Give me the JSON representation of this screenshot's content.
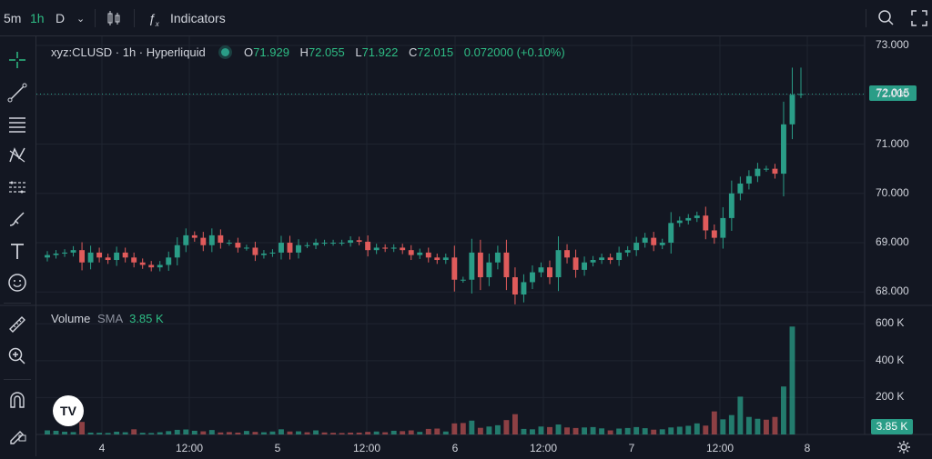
{
  "topbar": {
    "timeframes": [
      "5m",
      "1h",
      "D"
    ],
    "active_timeframe": "1h",
    "indicators_label": "Indicators"
  },
  "legend": {
    "symbol": "xyz:CLUSD · 1h · Hyperliquid",
    "o_label": "O",
    "o": "71.929",
    "h_label": "H",
    "h": "72.055",
    "l_label": "L",
    "l": "71.922",
    "c_label": "C",
    "c": "72.015",
    "change": "0.072000 (+0.10%)"
  },
  "volume_legend": {
    "label": "Volume",
    "sma_label": "SMA",
    "sma_value": "3.85 K"
  },
  "last_price_tag": "72.015",
  "volume_tag": "3.85 K",
  "colors": {
    "up": "#2a9d87",
    "down": "#e05b5b",
    "bg": "#131722",
    "grid": "#1f2430",
    "text": "#d1d4dc"
  },
  "chart_data": [
    {
      "type": "candlestick",
      "ylim": [
        67.6,
        73.0
      ],
      "yticks": [
        "68.000",
        "69.000",
        "70.000",
        "71.000",
        "72.000",
        "73.000"
      ],
      "xticks": [
        "4",
        "12:00",
        "5",
        "12:00",
        "6",
        "12:00",
        "7",
        "12:00",
        "8"
      ],
      "close": [
        68.75,
        68.78,
        68.8,
        68.85,
        68.6,
        68.8,
        68.7,
        68.65,
        68.8,
        68.7,
        68.6,
        68.55,
        68.5,
        68.55,
        68.7,
        68.95,
        69.15,
        69.1,
        68.95,
        69.15,
        69.0,
        69.0,
        68.9,
        68.9,
        68.75,
        68.78,
        68.8,
        69.0,
        68.8,
        68.95,
        68.95,
        69.0,
        69.0,
        69.0,
        69.0,
        69.05,
        69.02,
        68.85,
        68.9,
        68.88,
        68.9,
        68.85,
        68.75,
        68.8,
        68.7,
        68.65,
        68.7,
        68.25,
        68.25,
        68.8,
        68.3,
        68.6,
        68.8,
        68.3,
        67.95,
        68.2,
        68.4,
        68.5,
        68.3,
        68.85,
        68.7,
        68.45,
        68.6,
        68.65,
        68.7,
        68.65,
        68.8,
        68.85,
        69.0,
        69.1,
        68.95,
        69.0,
        69.4,
        69.45,
        69.5,
        69.55,
        69.25,
        69.1,
        69.5,
        70.0,
        70.2,
        70.35,
        70.5,
        70.5,
        70.4,
        71.4,
        72.0,
        72.015
      ],
      "up_volume": [
        22000,
        20000,
        15000,
        13000,
        0,
        10000,
        9000,
        8000,
        15000,
        12000,
        0,
        9000,
        8000,
        12000,
        18000,
        25000,
        27000,
        20000,
        0,
        24000,
        0,
        0,
        0,
        19000,
        0,
        12000,
        16000,
        28000,
        0,
        17000,
        0,
        22000,
        0,
        0,
        0,
        0,
        0,
        0,
        16000,
        0,
        20000,
        0,
        0,
        14000,
        0,
        0,
        16000,
        0,
        0,
        75000,
        0,
        43000,
        50000,
        0,
        0,
        30000,
        28000,
        43000,
        0,
        54000,
        0,
        0,
        38000,
        40000,
        33000,
        0,
        32000,
        35000,
        40000,
        34000,
        0,
        28000,
        38000,
        42000,
        47000,
        60000,
        0,
        0,
        82000,
        105000,
        205000,
        95000,
        85000,
        0,
        0,
        260000,
        585000,
        0
      ],
      "down_volume": [
        0,
        0,
        0,
        0,
        68000,
        0,
        0,
        0,
        0,
        0,
        28000,
        0,
        0,
        0,
        0,
        0,
        0,
        0,
        17000,
        0,
        11000,
        13000,
        10000,
        0,
        14000,
        0,
        0,
        0,
        16000,
        0,
        12000,
        0,
        11000,
        9000,
        8000,
        10000,
        10000,
        14000,
        0,
        12000,
        0,
        18000,
        22000,
        0,
        30000,
        32000,
        0,
        60000,
        62000,
        0,
        36000,
        0,
        0,
        78000,
        110000,
        0,
        0,
        0,
        40000,
        0,
        38000,
        35000,
        0,
        0,
        0,
        22000,
        0,
        0,
        0,
        0,
        26000,
        0,
        0,
        0,
        0,
        0,
        48000,
        125000,
        0,
        0,
        0,
        0,
        0,
        80000,
        95000,
        0,
        0,
        0
      ],
      "volume_ylim": [
        0,
        680000
      ],
      "volume_yticks": [
        "200 K",
        "400 K",
        "600 K"
      ]
    }
  ]
}
